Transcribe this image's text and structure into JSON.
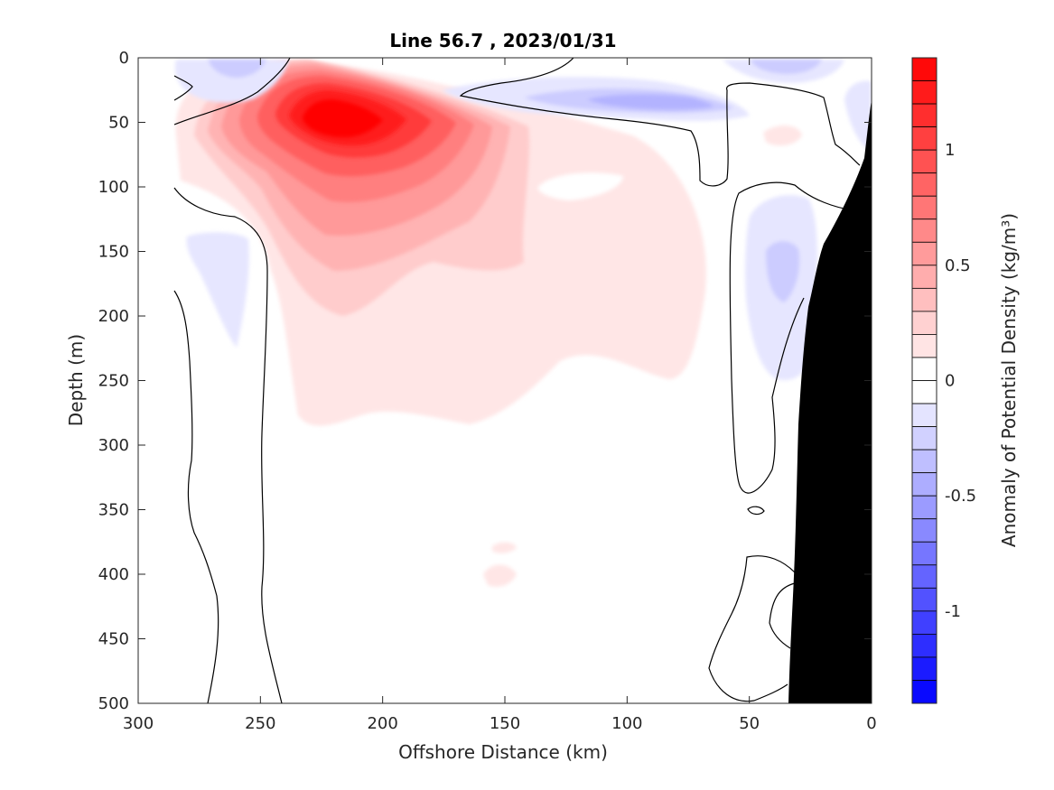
{
  "chart_data": {
    "type": "heatmap",
    "title": "Line 56.7 , 2023/01/31",
    "xlabel": "Offshore Distance (km)",
    "ylabel": "Depth (m)",
    "xlim": [
      300,
      0
    ],
    "ylim": [
      0,
      500
    ],
    "x_reversed": true,
    "y_reversed": true,
    "x_ticks": [
      "300",
      "250",
      "200",
      "150",
      "100",
      "50",
      "0"
    ],
    "y_ticks": [
      "0",
      "50",
      "100",
      "150",
      "200",
      "250",
      "300",
      "350",
      "400",
      "450",
      "500"
    ],
    "colorbar": {
      "label": "Anomaly of Potential Density (kg/m³)",
      "range": [
        -1.4,
        1.4
      ],
      "step": 0.1,
      "tick_values": [
        1,
        0.5,
        0,
        -0.5,
        -1
      ],
      "tick_labels": [
        "1",
        "0.5",
        "0",
        "-0.5",
        "-1"
      ],
      "colormap": "blue-white-red"
    },
    "features": [
      {
        "name": "positive anomaly core",
        "x_km": 220,
        "depth_m": 60,
        "anomaly": 1.3
      },
      {
        "name": "negative anomaly near surface",
        "x_km": 90,
        "depth_m": 35,
        "anomaly": -0.4
      },
      {
        "name": "negative anomaly near surface",
        "x_km": 258,
        "depth_m": 5,
        "anomaly": -0.3
      },
      {
        "name": "negative anomaly near surface",
        "x_km": 45,
        "depth_m": 5,
        "anomaly": -0.3
      },
      {
        "name": "negative anomaly shelf",
        "x_km": 36,
        "depth_m": 170,
        "anomaly": -0.3
      },
      {
        "name": "negative anomaly west",
        "x_km": 260,
        "depth_m": 170,
        "anomaly": -0.15
      }
    ],
    "zero_contour_color": "#000000",
    "bathymetry_color": "#000000"
  }
}
